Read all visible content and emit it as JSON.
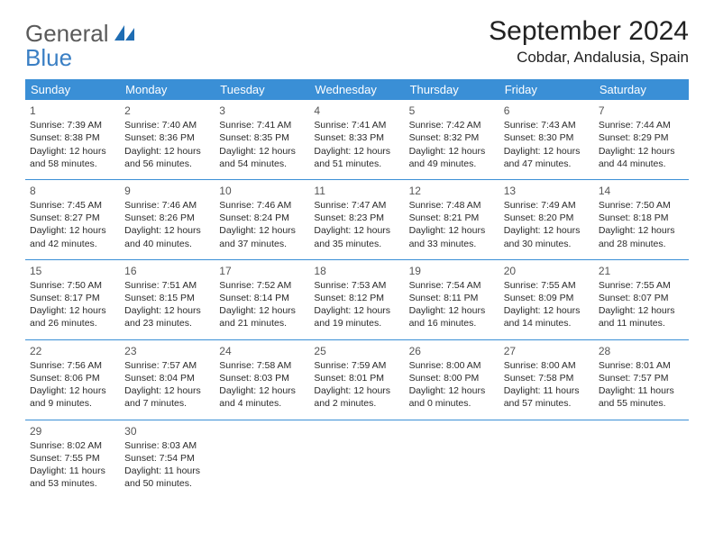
{
  "logo": {
    "line1": "General",
    "line2": "Blue"
  },
  "title": "September 2024",
  "location": "Cobdar, Andalusia, Spain",
  "header_bg": "#3a8fd6",
  "header_fg": "#ffffff",
  "divider_color": "#3a8fd6",
  "day_names": [
    "Sunday",
    "Monday",
    "Tuesday",
    "Wednesday",
    "Thursday",
    "Friday",
    "Saturday"
  ],
  "weeks": [
    [
      {
        "n": "1",
        "sr": "7:39 AM",
        "ss": "8:38 PM",
        "dl": "12 hours and 58 minutes."
      },
      {
        "n": "2",
        "sr": "7:40 AM",
        "ss": "8:36 PM",
        "dl": "12 hours and 56 minutes."
      },
      {
        "n": "3",
        "sr": "7:41 AM",
        "ss": "8:35 PM",
        "dl": "12 hours and 54 minutes."
      },
      {
        "n": "4",
        "sr": "7:41 AM",
        "ss": "8:33 PM",
        "dl": "12 hours and 51 minutes."
      },
      {
        "n": "5",
        "sr": "7:42 AM",
        "ss": "8:32 PM",
        "dl": "12 hours and 49 minutes."
      },
      {
        "n": "6",
        "sr": "7:43 AM",
        "ss": "8:30 PM",
        "dl": "12 hours and 47 minutes."
      },
      {
        "n": "7",
        "sr": "7:44 AM",
        "ss": "8:29 PM",
        "dl": "12 hours and 44 minutes."
      }
    ],
    [
      {
        "n": "8",
        "sr": "7:45 AM",
        "ss": "8:27 PM",
        "dl": "12 hours and 42 minutes."
      },
      {
        "n": "9",
        "sr": "7:46 AM",
        "ss": "8:26 PM",
        "dl": "12 hours and 40 minutes."
      },
      {
        "n": "10",
        "sr": "7:46 AM",
        "ss": "8:24 PM",
        "dl": "12 hours and 37 minutes."
      },
      {
        "n": "11",
        "sr": "7:47 AM",
        "ss": "8:23 PM",
        "dl": "12 hours and 35 minutes."
      },
      {
        "n": "12",
        "sr": "7:48 AM",
        "ss": "8:21 PM",
        "dl": "12 hours and 33 minutes."
      },
      {
        "n": "13",
        "sr": "7:49 AM",
        "ss": "8:20 PM",
        "dl": "12 hours and 30 minutes."
      },
      {
        "n": "14",
        "sr": "7:50 AM",
        "ss": "8:18 PM",
        "dl": "12 hours and 28 minutes."
      }
    ],
    [
      {
        "n": "15",
        "sr": "7:50 AM",
        "ss": "8:17 PM",
        "dl": "12 hours and 26 minutes."
      },
      {
        "n": "16",
        "sr": "7:51 AM",
        "ss": "8:15 PM",
        "dl": "12 hours and 23 minutes."
      },
      {
        "n": "17",
        "sr": "7:52 AM",
        "ss": "8:14 PM",
        "dl": "12 hours and 21 minutes."
      },
      {
        "n": "18",
        "sr": "7:53 AM",
        "ss": "8:12 PM",
        "dl": "12 hours and 19 minutes."
      },
      {
        "n": "19",
        "sr": "7:54 AM",
        "ss": "8:11 PM",
        "dl": "12 hours and 16 minutes."
      },
      {
        "n": "20",
        "sr": "7:55 AM",
        "ss": "8:09 PM",
        "dl": "12 hours and 14 minutes."
      },
      {
        "n": "21",
        "sr": "7:55 AM",
        "ss": "8:07 PM",
        "dl": "12 hours and 11 minutes."
      }
    ],
    [
      {
        "n": "22",
        "sr": "7:56 AM",
        "ss": "8:06 PM",
        "dl": "12 hours and 9 minutes."
      },
      {
        "n": "23",
        "sr": "7:57 AM",
        "ss": "8:04 PM",
        "dl": "12 hours and 7 minutes."
      },
      {
        "n": "24",
        "sr": "7:58 AM",
        "ss": "8:03 PM",
        "dl": "12 hours and 4 minutes."
      },
      {
        "n": "25",
        "sr": "7:59 AM",
        "ss": "8:01 PM",
        "dl": "12 hours and 2 minutes."
      },
      {
        "n": "26",
        "sr": "8:00 AM",
        "ss": "8:00 PM",
        "dl": "12 hours and 0 minutes."
      },
      {
        "n": "27",
        "sr": "8:00 AM",
        "ss": "7:58 PM",
        "dl": "11 hours and 57 minutes."
      },
      {
        "n": "28",
        "sr": "8:01 AM",
        "ss": "7:57 PM",
        "dl": "11 hours and 55 minutes."
      }
    ],
    [
      {
        "n": "29",
        "sr": "8:02 AM",
        "ss": "7:55 PM",
        "dl": "11 hours and 53 minutes."
      },
      {
        "n": "30",
        "sr": "8:03 AM",
        "ss": "7:54 PM",
        "dl": "11 hours and 50 minutes."
      },
      null,
      null,
      null,
      null,
      null
    ]
  ],
  "labels": {
    "sunrise": "Sunrise:",
    "sunset": "Sunset:",
    "daylight": "Daylight:"
  }
}
